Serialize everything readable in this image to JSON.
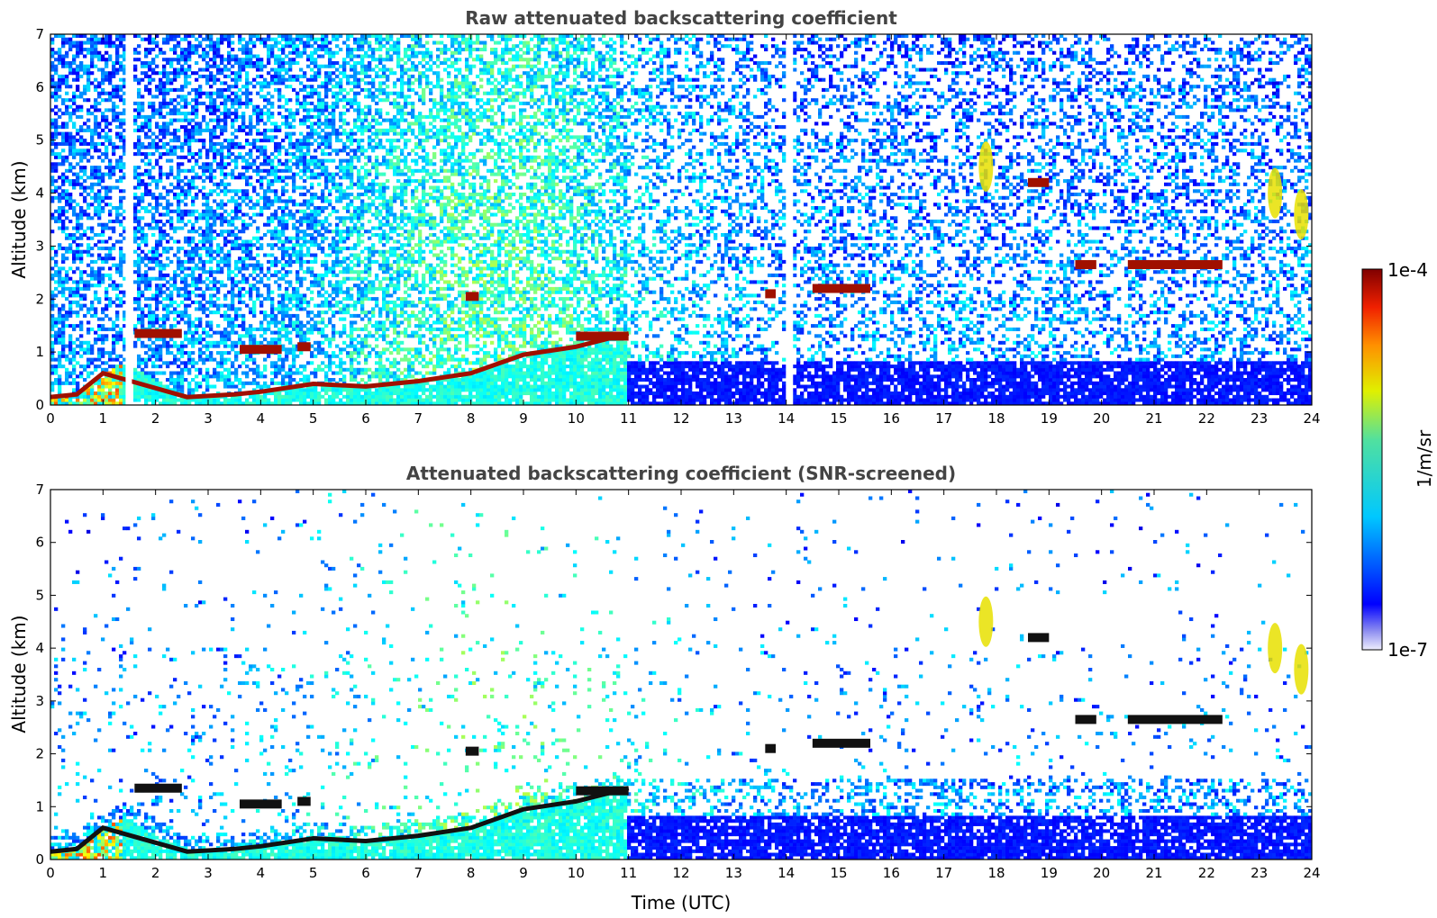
{
  "chart_data": [
    {
      "type": "heatmap",
      "title": "Raw attenuated backscattering coefficient",
      "xlabel": "",
      "ylabel": "Altitude (km)",
      "xlim": [
        0,
        24
      ],
      "ylim": [
        0,
        7
      ],
      "x_ticks": [
        "0",
        "1",
        "2",
        "3",
        "4",
        "5",
        "6",
        "7",
        "8",
        "9",
        "10",
        "11",
        "12",
        "13",
        "14",
        "15",
        "16",
        "17",
        "18",
        "19",
        "20",
        "21",
        "22",
        "23",
        "24"
      ],
      "y_ticks": [
        "0",
        "1",
        "2",
        "3",
        "4",
        "5",
        "6",
        "7"
      ],
      "screened": false,
      "features": {
        "boundary_layer_top_km": [
          {
            "t": 0.0,
            "alt": 0.15
          },
          {
            "t": 0.5,
            "alt": 0.2
          },
          {
            "t": 1.0,
            "alt": 0.6
          },
          {
            "t": 1.4,
            "alt": 0.8
          },
          {
            "t": 2.6,
            "alt": 0.15
          },
          {
            "t": 3.5,
            "alt": 0.2
          },
          {
            "t": 4.0,
            "alt": 0.25
          },
          {
            "t": 5.0,
            "alt": 0.4
          },
          {
            "t": 6.0,
            "alt": 0.35
          },
          {
            "t": 7.0,
            "alt": 0.45
          },
          {
            "t": 8.0,
            "alt": 0.6
          },
          {
            "t": 9.0,
            "alt": 0.95
          },
          {
            "t": 10.0,
            "alt": 1.1
          },
          {
            "t": 11.0,
            "alt": 1.35
          }
        ],
        "cloud_layers": [
          {
            "t_start": 1.6,
            "t_end": 2.5,
            "alt_km": 1.35
          },
          {
            "t_start": 3.6,
            "t_end": 4.4,
            "alt_km": 1.05
          },
          {
            "t_start": 4.7,
            "t_end": 4.95,
            "alt_km": 1.1
          },
          {
            "t_start": 7.9,
            "t_end": 8.15,
            "alt_km": 2.05
          },
          {
            "t_start": 10.0,
            "t_end": 11.0,
            "alt_km": 1.3
          },
          {
            "t_start": 13.6,
            "t_end": 13.8,
            "alt_km": 2.1
          },
          {
            "t_start": 14.5,
            "t_end": 15.6,
            "alt_km": 2.2
          },
          {
            "t_start": 18.6,
            "t_end": 19.0,
            "alt_km": 4.2
          },
          {
            "t_start": 19.5,
            "t_end": 19.9,
            "alt_km": 2.65
          },
          {
            "t_start": 20.5,
            "t_end": 22.3,
            "alt_km": 2.65
          }
        ],
        "high_patches": [
          {
            "t": 17.8,
            "alt_km": 4.5
          },
          {
            "t": 23.3,
            "alt_km": 4.0
          },
          {
            "t": 23.8,
            "alt_km": 3.6
          }
        ]
      }
    },
    {
      "type": "heatmap",
      "title": "Attenuated backscattering coefficient (SNR-screened)",
      "xlabel": "Time (UTC)",
      "ylabel": "Altitude (km)",
      "xlim": [
        0,
        24
      ],
      "ylim": [
        0,
        7
      ],
      "x_ticks": [
        "0",
        "1",
        "2",
        "3",
        "4",
        "5",
        "6",
        "7",
        "8",
        "9",
        "10",
        "11",
        "12",
        "13",
        "14",
        "15",
        "16",
        "17",
        "18",
        "19",
        "20",
        "21",
        "22",
        "23",
        "24"
      ],
      "y_ticks": [
        "0",
        "1",
        "2",
        "3",
        "4",
        "5",
        "6",
        "7"
      ],
      "screened": true
    }
  ],
  "colorbar": {
    "label": "1/m/sr",
    "max_label": "1e-4",
    "min_label": "1e-7",
    "scale": "log",
    "colormap": "jet"
  },
  "colors": {
    "title": "#444444",
    "background": "#ffffff",
    "cloud_raw": "#a01000",
    "cloud_screened": "#111111"
  }
}
